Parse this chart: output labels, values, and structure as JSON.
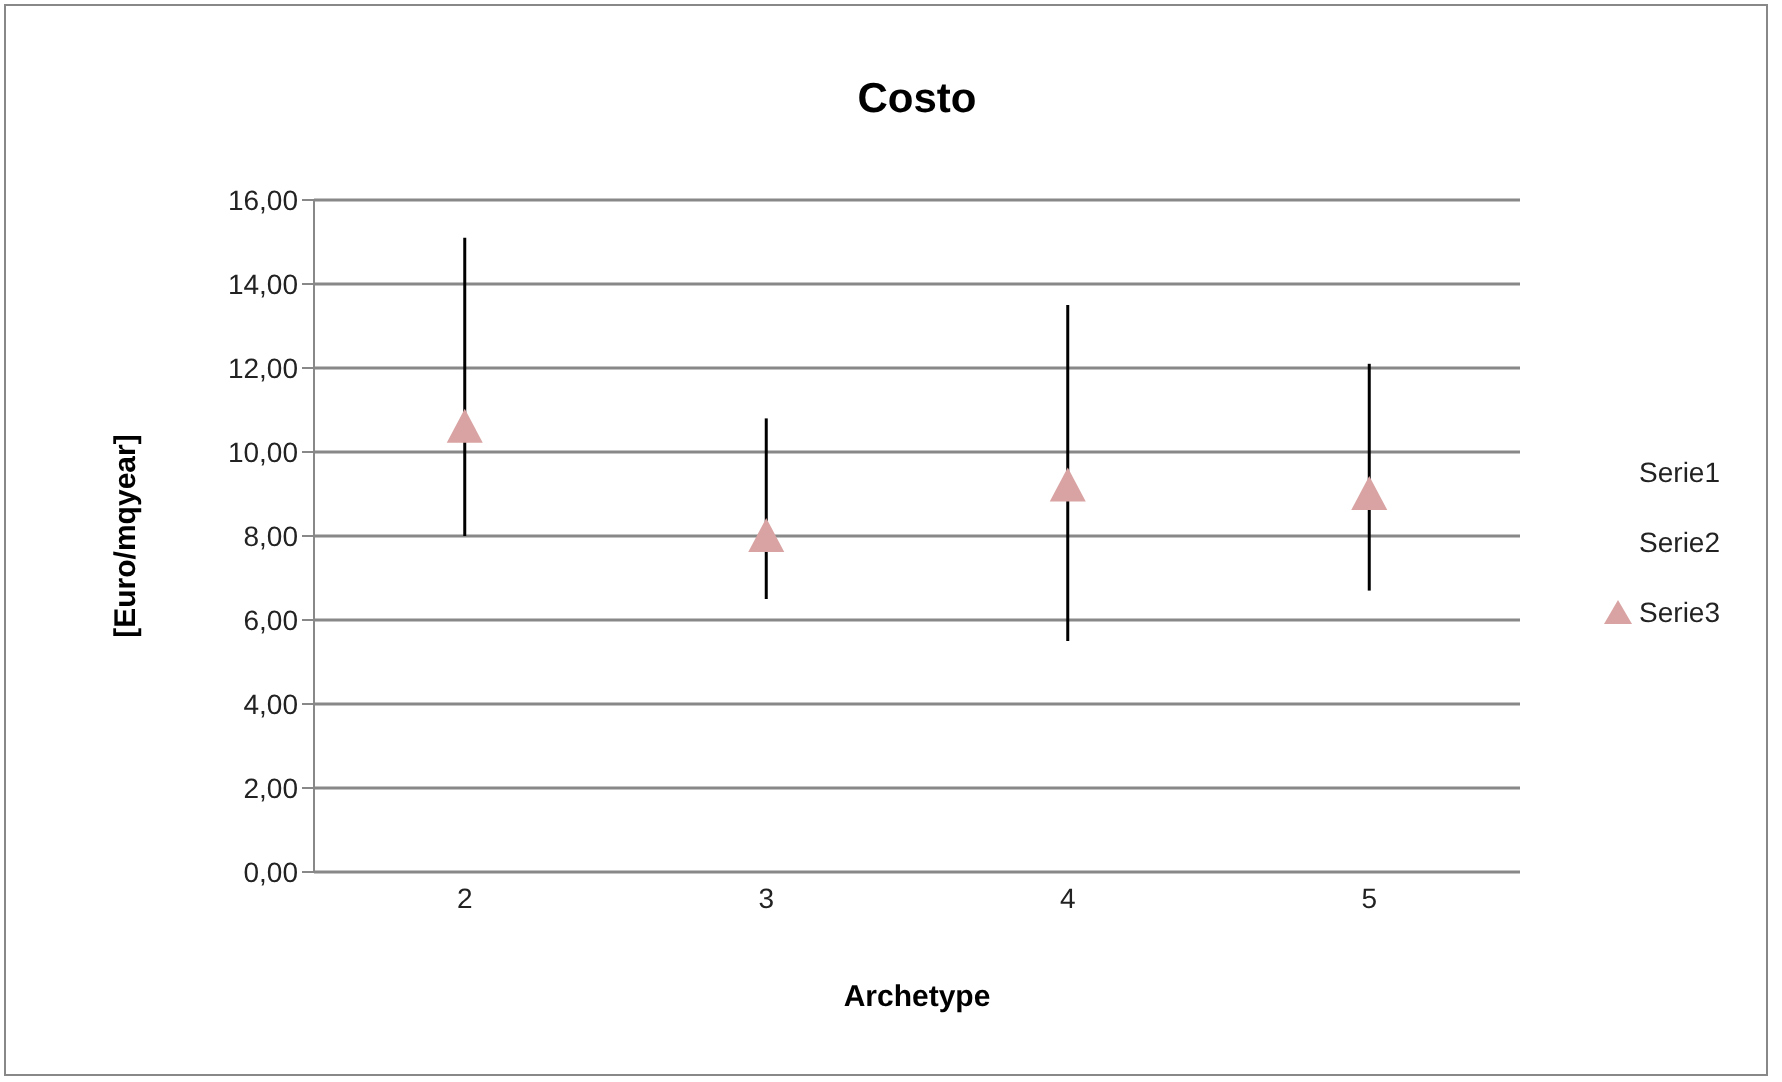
{
  "chart_data": {
    "type": "scatter",
    "title": "Costo",
    "xlabel": "Archetype",
    "ylabel": "[Euro/mqyear]",
    "categories": [
      "2",
      "3",
      "4",
      "5"
    ],
    "series": [
      {
        "name": "Serie3",
        "color": "#d9a3a3",
        "marker": "triangle",
        "values": [
          10.6,
          8.0,
          9.2,
          9.0
        ],
        "errors": [
          [
            8.0,
            15.1
          ],
          [
            6.5,
            10.8
          ],
          [
            5.5,
            13.5
          ],
          [
            6.7,
            12.1
          ]
        ]
      }
    ],
    "annotations": [
      "Serie1",
      "Serie2"
    ],
    "ylim": [
      0,
      16
    ],
    "yticks": [
      {
        "value": 0,
        "label": "0,00"
      },
      {
        "value": 2,
        "label": "2,00"
      },
      {
        "value": 4,
        "label": "4,00"
      },
      {
        "value": 6,
        "label": "6,00"
      },
      {
        "value": 8,
        "label": "8,00"
      },
      {
        "value": 10,
        "label": "10,00"
      },
      {
        "value": 12,
        "label": "12,00"
      },
      {
        "value": 14,
        "label": "14,00"
      },
      {
        "value": 16,
        "label": "16,00"
      }
    ],
    "grid": "y",
    "legend": "right"
  }
}
